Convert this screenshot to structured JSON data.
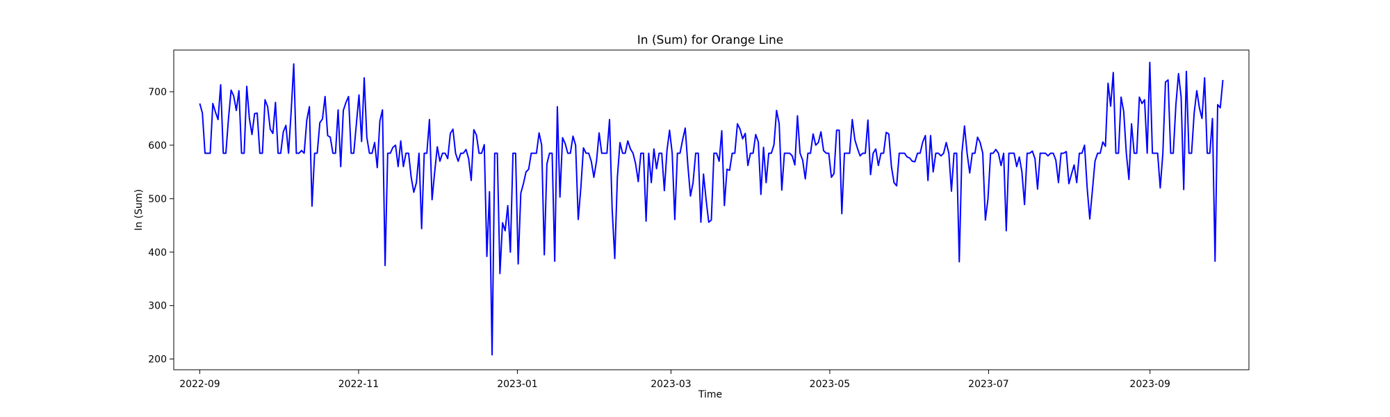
{
  "chart_data": {
    "type": "line",
    "title": "In (Sum) for Orange Line",
    "xlabel": "Time",
    "ylabel": "In (Sum)",
    "x_start": "2022-09-01",
    "x_end": "2023-09-29",
    "xlim": [
      "2022-08-22",
      "2023-10-09"
    ],
    "ylim": [
      180,
      778
    ],
    "x_ticks": [
      {
        "date": "2022-09-01",
        "label": "2022-09"
      },
      {
        "date": "2022-11-01",
        "label": "2022-11"
      },
      {
        "date": "2023-01-01",
        "label": "2023-01"
      },
      {
        "date": "2023-03-01",
        "label": "2023-03"
      },
      {
        "date": "2023-05-01",
        "label": "2023-05"
      },
      {
        "date": "2023-07-01",
        "label": "2023-07"
      },
      {
        "date": "2023-09-01",
        "label": "2023-09"
      }
    ],
    "y_ticks": [
      200,
      300,
      400,
      500,
      600,
      700
    ],
    "series": [
      {
        "color": "#0000ff",
        "values": [
          678,
          660,
          585,
          585,
          585,
          678,
          662,
          648,
          713,
          585,
          585,
          650,
          703,
          692,
          665,
          702,
          585,
          585,
          710,
          650,
          620,
          659,
          660,
          585,
          585,
          685,
          672,
          630,
          622,
          680,
          585,
          585,
          625,
          637,
          585,
          662,
          752,
          585,
          585,
          590,
          585,
          647,
          672,
          486,
          585,
          585,
          642,
          649,
          691,
          618,
          615,
          585,
          585,
          666,
          560,
          665,
          680,
          691,
          585,
          585,
          640,
          694,
          607,
          726,
          615,
          585,
          585,
          605,
          558,
          645,
          666,
          375,
          585,
          585,
          596,
          600,
          560,
          608,
          560,
          585,
          585,
          540,
          512,
          530,
          585,
          444,
          585,
          585,
          648,
          498,
          550,
          597,
          570,
          585,
          585,
          575,
          622,
          630,
          585,
          570,
          585,
          585,
          592,
          575,
          534,
          629,
          619,
          585,
          585,
          601,
          392,
          513,
          208,
          585,
          585,
          360,
          455,
          440,
          487,
          400,
          585,
          585,
          378,
          510,
          528,
          550,
          555,
          585,
          585,
          585,
          623,
          600,
          395,
          565,
          585,
          585,
          383,
          672,
          503,
          614,
          603,
          585,
          585,
          617,
          600,
          461,
          520,
          595,
          585,
          585,
          570,
          540,
          570,
          623,
          585,
          585,
          585,
          648,
          480,
          388,
          540,
          605,
          585,
          585,
          608,
          593,
          585,
          565,
          532,
          585,
          585,
          458,
          585,
          530,
          593,
          556,
          585,
          585,
          515,
          590,
          628,
          585,
          461,
          585,
          585,
          610,
          632,
          563,
          505,
          530,
          585,
          585,
          456,
          546,
          498,
          456,
          460,
          585,
          585,
          570,
          627,
          487,
          555,
          553,
          585,
          585,
          640,
          630,
          612,
          622,
          562,
          585,
          585,
          620,
          606,
          508,
          596,
          530,
          585,
          585,
          601,
          665,
          640,
          516,
          585,
          585,
          585,
          580,
          563,
          655,
          585,
          572,
          537,
          585,
          585,
          621,
          600,
          605,
          625,
          590,
          585,
          585,
          540,
          547,
          628,
          628,
          472,
          585,
          585,
          585,
          648,
          610,
          594,
          580,
          585,
          585,
          647,
          545,
          585,
          593,
          562,
          585,
          585,
          624,
          621,
          560,
          530,
          524,
          585,
          585,
          585,
          578,
          576,
          570,
          569,
          585,
          585,
          606,
          618,
          534,
          618,
          550,
          585,
          585,
          580,
          585,
          605,
          585,
          514,
          585,
          585,
          382,
          585,
          636,
          585,
          548,
          585,
          585,
          615,
          605,
          585,
          460,
          500,
          585,
          585,
          592,
          585,
          562,
          585,
          440,
          585,
          585,
          585,
          560,
          578,
          550,
          489,
          585,
          585,
          589,
          575,
          518,
          585,
          585,
          585,
          580,
          585,
          585,
          572,
          530,
          585,
          585,
          588,
          528,
          546,
          563,
          530,
          585,
          585,
          600,
          520,
          462,
          515,
          570,
          585,
          585,
          606,
          598,
          716,
          673,
          736,
          585,
          585,
          690,
          663,
          585,
          536,
          640,
          585,
          585,
          690,
          678,
          685,
          585,
          755,
          585,
          585,
          585,
          520,
          585,
          718,
          722,
          585,
          585,
          676,
          734,
          690,
          517,
          738,
          585,
          585,
          660,
          702,
          670,
          650,
          726,
          585,
          585,
          650,
          383,
          676,
          670,
          722
        ]
      }
    ]
  }
}
